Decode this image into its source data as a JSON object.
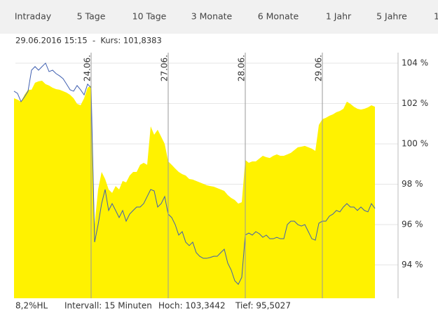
{
  "tabs": [
    "Intraday",
    "5 Tage",
    "10 Tage",
    "3 Monate",
    "6 Monate",
    "1 Jahr",
    "5 Jahre",
    "1"
  ],
  "info": "29.06.2016 15:15  -  Kurs: 101,8383",
  "footer": [
    "8,2%HL",
    "Intervall: 15 Minuten",
    "Hoch: 103,3442",
    "Tief: 95,5027"
  ],
  "chart_data": {
    "type": "area",
    "categories": [
      null,
      null,
      null,
      null,
      null,
      null,
      null,
      null,
      null,
      null,
      null,
      null,
      null,
      null,
      null,
      null,
      null,
      null,
      null,
      null,
      null,
      null,
      "24.06.",
      null,
      null,
      null,
      null,
      null,
      null,
      null,
      null,
      null,
      null,
      null,
      null,
      null,
      null,
      null,
      null,
      null,
      null,
      null,
      null,
      null,
      "27.06.",
      null,
      null,
      null,
      null,
      null,
      null,
      null,
      null,
      null,
      null,
      null,
      null,
      null,
      null,
      null,
      null,
      null,
      null,
      null,
      null,
      null,
      "28.06.",
      null,
      null,
      null,
      null,
      null,
      null,
      null,
      null,
      null,
      null,
      null,
      null,
      null,
      null,
      null,
      null,
      null,
      null,
      null,
      null,
      null,
      "29.06.",
      null,
      null,
      null,
      null,
      null,
      null,
      null,
      null,
      null,
      null,
      null,
      null,
      null,
      null,
      null
    ],
    "series": [
      {
        "style": "area",
        "color": "#fff200",
        "values": [
          102.26,
          102.19,
          102.09,
          102.43,
          102.68,
          102.68,
          103.03,
          103.1,
          103.13,
          102.96,
          102.89,
          102.78,
          102.71,
          102.68,
          102.61,
          102.54,
          102.43,
          102.26,
          101.98,
          101.91,
          102.26,
          102.78,
          102.89,
          96.0,
          97.74,
          98.61,
          98.26,
          97.74,
          97.57,
          97.91,
          97.74,
          98.16,
          98.09,
          98.43,
          98.61,
          98.61,
          98.96,
          99.06,
          98.96,
          100.87,
          100.45,
          100.7,
          100.35,
          100.0,
          99.13,
          98.96,
          98.78,
          98.61,
          98.5,
          98.43,
          98.26,
          98.23,
          98.16,
          98.09,
          98.02,
          97.95,
          97.91,
          97.88,
          97.81,
          97.74,
          97.67,
          97.46,
          97.32,
          97.22,
          97.04,
          97.11,
          99.2,
          99.06,
          99.13,
          99.13,
          99.27,
          99.41,
          99.34,
          99.3,
          99.41,
          99.48,
          99.41,
          99.41,
          99.48,
          99.55,
          99.69,
          99.83,
          99.86,
          99.9,
          99.83,
          99.76,
          99.65,
          100.94,
          101.22,
          101.29,
          101.39,
          101.46,
          101.57,
          101.63,
          101.74,
          102.09,
          101.98,
          101.84,
          101.74,
          101.7,
          101.74,
          101.81,
          101.91,
          101.84
        ]
      },
      {
        "style": "line",
        "color": "#3f5fb0",
        "values": [
          102.61,
          102.5,
          102.09,
          102.33,
          102.61,
          103.65,
          103.83,
          103.65,
          103.83,
          104.0,
          103.58,
          103.65,
          103.48,
          103.37,
          103.23,
          102.96,
          102.68,
          102.61,
          102.89,
          102.68,
          102.43,
          102.96,
          102.78,
          95.13,
          96.0,
          97.04,
          97.74,
          96.7,
          97.04,
          96.7,
          96.35,
          96.7,
          96.17,
          96.52,
          96.7,
          96.87,
          96.87,
          97.04,
          97.39,
          97.74,
          97.67,
          96.87,
          97.04,
          97.39,
          96.52,
          96.35,
          96.0,
          95.48,
          95.65,
          95.13,
          94.96,
          95.13,
          94.61,
          94.43,
          94.33,
          94.33,
          94.37,
          94.43,
          94.43,
          94.61,
          94.78,
          94.09,
          93.74,
          93.22,
          93.04,
          93.39,
          95.48,
          95.58,
          95.48,
          95.65,
          95.55,
          95.37,
          95.48,
          95.3,
          95.3,
          95.37,
          95.3,
          95.3,
          96.0,
          96.17,
          96.17,
          96.0,
          95.93,
          96.0,
          95.65,
          95.3,
          95.23,
          96.07,
          96.17,
          96.17,
          96.42,
          96.52,
          96.7,
          96.63,
          96.87,
          97.04,
          96.87,
          96.87,
          96.7,
          96.87,
          96.7,
          96.63,
          97.04,
          96.8
        ]
      }
    ],
    "ylim": [
      92.35,
      104.52
    ],
    "yticks": [
      {
        "value": 94,
        "label": "94 %"
      },
      {
        "value": 96,
        "label": "96 %"
      },
      {
        "value": 98,
        "label": "98 %"
      },
      {
        "value": 100,
        "label": "100 %"
      },
      {
        "value": 102,
        "label": "102 %"
      },
      {
        "value": 104,
        "label": "104 %"
      }
    ],
    "grid": true
  }
}
